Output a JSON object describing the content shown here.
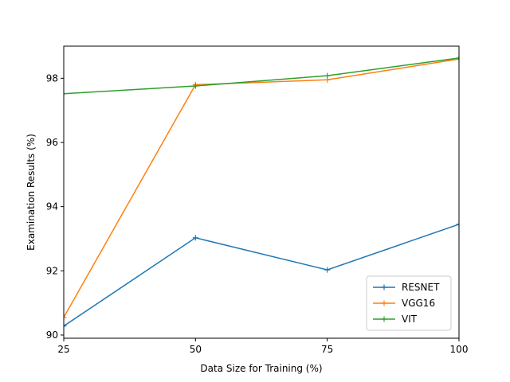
{
  "chart_data": {
    "type": "line",
    "title": "",
    "xlabel": "Data Size for Training (%)",
    "ylabel": "Examination Results (%)",
    "x": [
      25,
      50,
      75,
      100
    ],
    "xlim": [
      25,
      100
    ],
    "ylim": [
      89.9,
      99.0
    ],
    "xticks": [
      25,
      50,
      75,
      100
    ],
    "xtick_labels": [
      "25",
      "50",
      "75",
      "100"
    ],
    "yticks": [
      90,
      92,
      94,
      96,
      98
    ],
    "ytick_labels": [
      "90",
      "92",
      "94",
      "96",
      "98"
    ],
    "grid": false,
    "legend_position": "bottom-right",
    "marker": "+",
    "series": [
      {
        "name": "RESNET",
        "color": "#1f77b4",
        "values": [
          90.28,
          93.03,
          92.03,
          93.45
        ]
      },
      {
        "name": "VGG16",
        "color": "#ff7f0e",
        "values": [
          90.55,
          97.8,
          97.95,
          98.6
        ]
      },
      {
        "name": "VIT",
        "color": "#2ca02c",
        "values": [
          97.52,
          97.76,
          98.08,
          98.63
        ]
      }
    ]
  }
}
